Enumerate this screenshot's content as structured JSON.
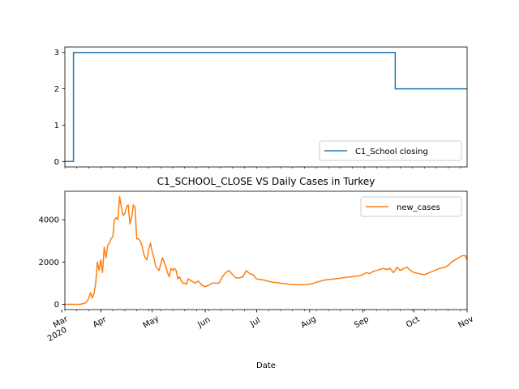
{
  "chart_data": [
    {
      "type": "line",
      "title": "",
      "xlabel": "",
      "ylabel": "",
      "xlim": [
        "2020-03-11",
        "2020-11-01"
      ],
      "ylim": [
        -0.15,
        3.15
      ],
      "yticks": [
        0,
        1,
        2,
        3
      ],
      "grid": false,
      "legend_position": "lower-right",
      "series": [
        {
          "name": "C1_School closing",
          "color": "#1f77b4",
          "step": true,
          "x": [
            "2020-03-11",
            "2020-03-16",
            "2020-09-20",
            "2020-11-01"
          ],
          "y": [
            0,
            3,
            2,
            2
          ]
        }
      ]
    },
    {
      "type": "line",
      "title": "C1_SCHOOL_CLOSE VS Daily Cases in Turkey",
      "xlabel": "Date",
      "ylabel": "",
      "xlim": [
        "2020-03-11",
        "2020-11-01"
      ],
      "ylim": [
        -250,
        5350
      ],
      "yticks": [
        0,
        2000,
        4000
      ],
      "xticks": [
        {
          "date": "2020-03-01",
          "label": "Mar",
          "sublabel": "2020"
        },
        {
          "date": "2020-04-01",
          "label": "Apr"
        },
        {
          "date": "2020-05-01",
          "label": "May"
        },
        {
          "date": "2020-06-01",
          "label": "Jun"
        },
        {
          "date": "2020-07-01",
          "label": "Jul"
        },
        {
          "date": "2020-08-01",
          "label": "Aug"
        },
        {
          "date": "2020-09-01",
          "label": "Sep"
        },
        {
          "date": "2020-10-01",
          "label": "Oct"
        },
        {
          "date": "2020-11-01",
          "label": "Nov"
        }
      ],
      "grid": false,
      "legend_position": "upper-right",
      "series": [
        {
          "name": "new_cases",
          "color": "#ff7f0e",
          "x": [
            "2020-03-11",
            "2020-03-16",
            "2020-03-20",
            "2020-03-23",
            "2020-03-24",
            "2020-03-25",
            "2020-03-26",
            "2020-03-27",
            "2020-03-28",
            "2020-03-29",
            "2020-03-30",
            "2020-03-31",
            "2020-04-01",
            "2020-04-02",
            "2020-04-03",
            "2020-04-04",
            "2020-04-05",
            "2020-04-06",
            "2020-04-07",
            "2020-04-08",
            "2020-04-09",
            "2020-04-10",
            "2020-04-11",
            "2020-04-12",
            "2020-04-13",
            "2020-04-14",
            "2020-04-15",
            "2020-04-16",
            "2020-04-17",
            "2020-04-18",
            "2020-04-19",
            "2020-04-20",
            "2020-04-21",
            "2020-04-22",
            "2020-04-23",
            "2020-04-24",
            "2020-04-25",
            "2020-04-26",
            "2020-04-27",
            "2020-04-28",
            "2020-04-29",
            "2020-04-30",
            "2020-05-01",
            "2020-05-02",
            "2020-05-03",
            "2020-05-04",
            "2020-05-05",
            "2020-05-06",
            "2020-05-07",
            "2020-05-08",
            "2020-05-09",
            "2020-05-10",
            "2020-05-11",
            "2020-05-12",
            "2020-05-13",
            "2020-05-14",
            "2020-05-15",
            "2020-05-16",
            "2020-05-17",
            "2020-05-18",
            "2020-05-19",
            "2020-05-20",
            "2020-05-21",
            "2020-05-22",
            "2020-05-24",
            "2020-05-26",
            "2020-05-28",
            "2020-05-30",
            "2020-06-01",
            "2020-06-03",
            "2020-06-05",
            "2020-06-07",
            "2020-06-09",
            "2020-06-11",
            "2020-06-13",
            "2020-06-15",
            "2020-06-17",
            "2020-06-19",
            "2020-06-21",
            "2020-06-23",
            "2020-06-25",
            "2020-06-27",
            "2020-06-29",
            "2020-07-01",
            "2020-07-05",
            "2020-07-10",
            "2020-07-15",
            "2020-07-20",
            "2020-07-25",
            "2020-07-30",
            "2020-08-03",
            "2020-08-05",
            "2020-08-10",
            "2020-08-15",
            "2020-08-20",
            "2020-08-25",
            "2020-08-30",
            "2020-09-01",
            "2020-09-03",
            "2020-09-05",
            "2020-09-07",
            "2020-09-09",
            "2020-09-11",
            "2020-09-13",
            "2020-09-15",
            "2020-09-17",
            "2020-09-19",
            "2020-09-21",
            "2020-09-23",
            "2020-09-25",
            "2020-09-27",
            "2020-09-29",
            "2020-10-01",
            "2020-10-04",
            "2020-10-07",
            "2020-10-10",
            "2020-10-13",
            "2020-10-16",
            "2020-10-19",
            "2020-10-21",
            "2020-10-23",
            "2020-10-25",
            "2020-10-27",
            "2020-10-29",
            "2020-10-31",
            "2020-11-01"
          ],
          "y": [
            0,
            0,
            0,
            60,
            150,
            300,
            550,
            300,
            500,
            1000,
            2000,
            1600,
            2100,
            1500,
            2700,
            2200,
            2800,
            2900,
            3100,
            3200,
            4000,
            4100,
            4000,
            5100,
            4600,
            4200,
            4300,
            4600,
            4700,
            3800,
            4100,
            4700,
            4600,
            3100,
            3100,
            3000,
            2800,
            2400,
            2200,
            2100,
            2600,
            2900,
            2500,
            2200,
            1800,
            1700,
            1600,
            1900,
            2200,
            2000,
            1800,
            1500,
            1300,
            1700,
            1600,
            1700,
            1600,
            1200,
            1300,
            1100,
            1000,
            1000,
            950,
            1200,
            1100,
            1000,
            1100,
            900,
            830,
            900,
            1000,
            1000,
            1000,
            1300,
            1500,
            1600,
            1400,
            1250,
            1250,
            1300,
            1600,
            1450,
            1400,
            1200,
            1150,
            1050,
            1000,
            950,
            920,
            930,
            980,
            1050,
            1150,
            1200,
            1250,
            1300,
            1350,
            1400,
            1500,
            1450,
            1550,
            1600,
            1650,
            1700,
            1650,
            1700,
            1500,
            1750,
            1600,
            1700,
            1750,
            1600,
            1500,
            1450,
            1400,
            1500,
            1600,
            1700,
            1750,
            1850,
            2000,
            2100,
            2200,
            2300,
            2300,
            2100
          ]
        }
      ]
    }
  ]
}
